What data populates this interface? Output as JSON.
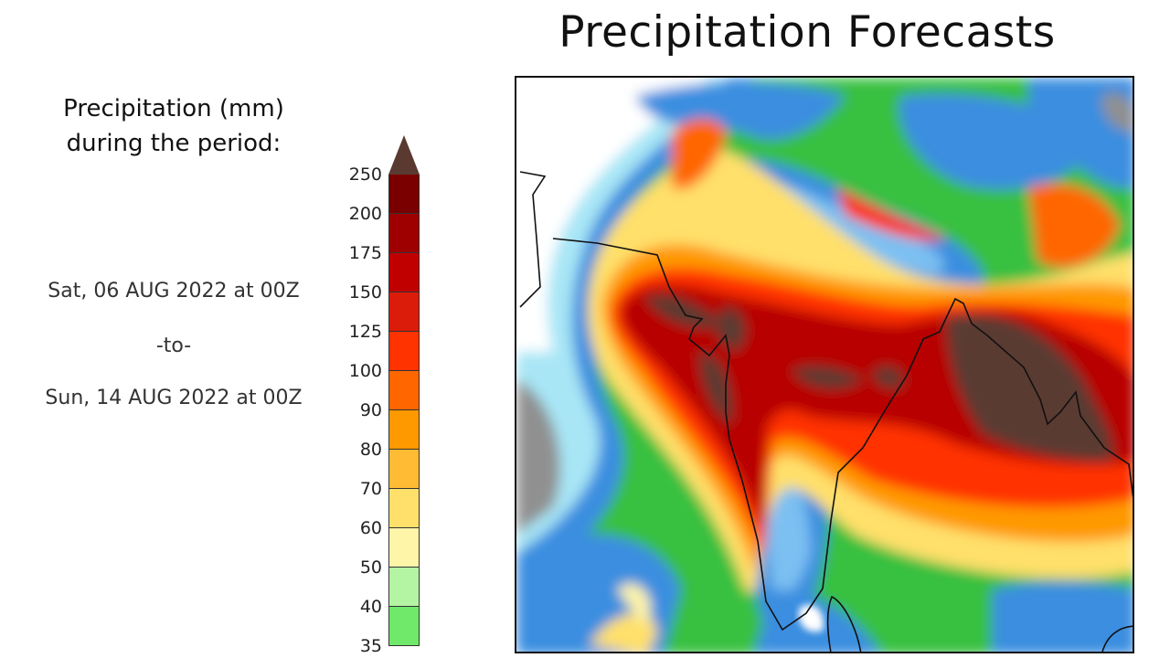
{
  "title": "Precipitation Forecasts",
  "legend": {
    "heading_line1": "Precipitation (mm)",
    "heading_line2": "during the period:",
    "period_start": "Sat, 06 AUG 2022 at 00Z",
    "period_sep": "-to-",
    "period_end": "Sun, 14 AUG 2022 at 00Z",
    "unit": "mm",
    "overflow_color": "#5a3a30",
    "ticks": [
      "250",
      "200",
      "175",
      "150",
      "125",
      "100",
      "90",
      "80",
      "70",
      "60",
      "50",
      "40",
      "35"
    ],
    "colors": [
      "#7a0000",
      "#9e0000",
      "#c00000",
      "#dc1c0a",
      "#ff3300",
      "#ff6600",
      "#ff9900",
      "#ffbb33",
      "#ffe06b",
      "#fff5a8",
      "#b4f5a4",
      "#70e86a"
    ]
  },
  "map": {
    "region": "South Asia / Bay of Bengal",
    "ocean_low_color": "#a8e6f6",
    "dry_color": "#9a9a9a"
  }
}
